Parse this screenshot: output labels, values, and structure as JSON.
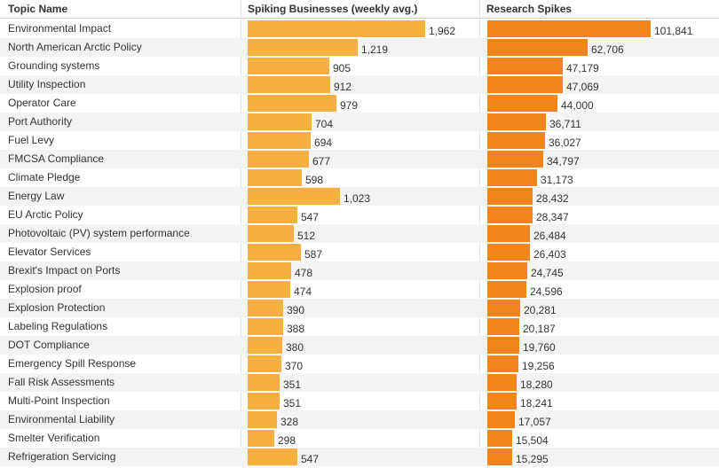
{
  "chart_data": {
    "type": "table",
    "columns": {
      "topic": "Topic Name",
      "businesses": "Spiking Businesses (weekly avg.)",
      "research": "Research Spikes"
    },
    "colors": {
      "businesses": "#f5b041",
      "research": "#f0851e",
      "stripe": "#f3f3f3"
    },
    "businesses_max": 1962,
    "research_max": 101841,
    "rows": [
      {
        "topic": "Environmental Impact",
        "businesses": 1962,
        "businesses_label": "1,962",
        "research": 101841,
        "research_label": "101,841"
      },
      {
        "topic": "North American Arctic Policy",
        "businesses": 1219,
        "businesses_label": "1,219",
        "research": 62706,
        "research_label": "62,706"
      },
      {
        "topic": "Grounding systems",
        "businesses": 905,
        "businesses_label": "905",
        "research": 47179,
        "research_label": "47,179"
      },
      {
        "topic": "Utility Inspection",
        "businesses": 912,
        "businesses_label": "912",
        "research": 47069,
        "research_label": "47,069"
      },
      {
        "topic": "Operator Care",
        "businesses": 979,
        "businesses_label": "979",
        "research": 44000,
        "research_label": "44,000"
      },
      {
        "topic": "Port Authority",
        "businesses": 704,
        "businesses_label": "704",
        "research": 36711,
        "research_label": "36,711"
      },
      {
        "topic": "Fuel Levy",
        "businesses": 694,
        "businesses_label": "694",
        "research": 36027,
        "research_label": "36,027"
      },
      {
        "topic": "FMCSA Compliance",
        "businesses": 677,
        "businesses_label": "677",
        "research": 34797,
        "research_label": "34,797"
      },
      {
        "topic": "Climate Pledge",
        "businesses": 598,
        "businesses_label": "598",
        "research": 31173,
        "research_label": "31,173"
      },
      {
        "topic": "Energy Law",
        "businesses": 1023,
        "businesses_label": "1,023",
        "research": 28432,
        "research_label": "28,432"
      },
      {
        "topic": "EU Arctic Policy",
        "businesses": 547,
        "businesses_label": "547",
        "research": 28347,
        "research_label": "28,347"
      },
      {
        "topic": "Photovoltaic (PV) system performance",
        "businesses": 512,
        "businesses_label": "512",
        "research": 26484,
        "research_label": "26,484"
      },
      {
        "topic": "Elevator Services",
        "businesses": 587,
        "businesses_label": "587",
        "research": 26403,
        "research_label": "26,403"
      },
      {
        "topic": "Brexit's Impact on Ports",
        "businesses": 478,
        "businesses_label": "478",
        "research": 24745,
        "research_label": "24,745"
      },
      {
        "topic": "Explosion proof",
        "businesses": 474,
        "businesses_label": "474",
        "research": 24596,
        "research_label": "24,596"
      },
      {
        "topic": "Explosion Protection",
        "businesses": 390,
        "businesses_label": "390",
        "research": 20281,
        "research_label": "20,281"
      },
      {
        "topic": "Labeling Regulations",
        "businesses": 388,
        "businesses_label": "388",
        "research": 20187,
        "research_label": "20,187"
      },
      {
        "topic": "DOT Compliance",
        "businesses": 380,
        "businesses_label": "380",
        "research": 19760,
        "research_label": "19,760"
      },
      {
        "topic": "Emergency Spill Response",
        "businesses": 370,
        "businesses_label": "370",
        "research": 19256,
        "research_label": "19,256"
      },
      {
        "topic": "Fall Risk Assessments",
        "businesses": 351,
        "businesses_label": "351",
        "research": 18280,
        "research_label": "18,280"
      },
      {
        "topic": "Multi-Point Inspection",
        "businesses": 351,
        "businesses_label": "351",
        "research": 18241,
        "research_label": "18,241"
      },
      {
        "topic": "Environmental Liability",
        "businesses": 328,
        "businesses_label": "328",
        "research": 17057,
        "research_label": "17,057"
      },
      {
        "topic": "Smelter Verification",
        "businesses": 298,
        "businesses_label": "298",
        "research": 15504,
        "research_label": "15,504"
      },
      {
        "topic": "Refrigeration Servicing",
        "businesses": 547,
        "businesses_label": "547",
        "research": 15295,
        "research_label": "15,295"
      }
    ]
  }
}
